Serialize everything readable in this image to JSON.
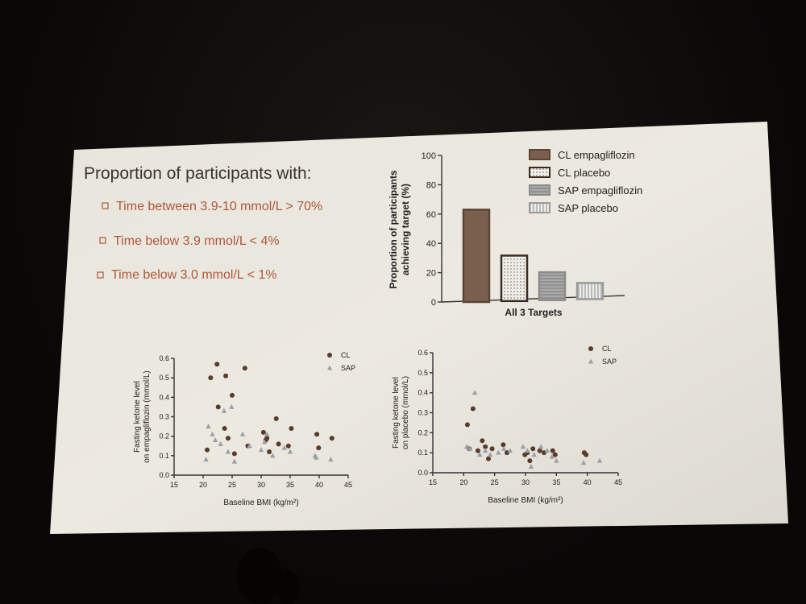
{
  "left_panel": {
    "title": "Proportion of participants with:",
    "bullets": [
      "Time between 3.9-10 mmol/L > 70%",
      "Time below 3.9 mmol/L < 4%",
      "Time below 3.0 mmol/L < 1%"
    ],
    "bullet_color": "#b0563a"
  },
  "chart_data": [
    {
      "type": "bar",
      "ylabel": "Proportion of participants achieving target (%)",
      "xlabel": "All 3 Targets",
      "ylim": [
        0,
        100
      ],
      "yticks": [
        0,
        20,
        40,
        60,
        80,
        100
      ],
      "series": [
        {
          "name": "CL empagliflozin",
          "values": [
            63
          ],
          "pattern": "solid",
          "color": "#7a6050"
        },
        {
          "name": "CL placebo",
          "values": [
            31
          ],
          "pattern": "dotted",
          "color": "#3a2a22"
        },
        {
          "name": "SAP empagliflozin",
          "values": [
            19
          ],
          "pattern": "hatched",
          "color": "#8a8a8a"
        },
        {
          "name": "SAP placebo",
          "values": [
            11
          ],
          "pattern": "vertical-lines",
          "color": "#9a9a9a"
        }
      ],
      "categories": [
        "All 3 Targets"
      ],
      "legend": "top-right"
    },
    {
      "type": "scatter",
      "xlabel": "Baseline BMI (kg/m²)",
      "ylabel": "Fasting ketone level on empagliflozin (mmol/L)",
      "xlim": [
        15,
        45
      ],
      "ylim": [
        0,
        0.6
      ],
      "xticks": [
        15,
        20,
        25,
        30,
        35,
        40,
        45
      ],
      "yticks": [
        "0.0",
        "0.1",
        "0.2",
        "0.3",
        "0.4",
        "0.5",
        "0.6"
      ],
      "legend": "top-right",
      "series": [
        {
          "name": "CL",
          "marker": "circle",
          "color": "#5a3a2a",
          "x": [
            20.7,
            21.3,
            22.4,
            22.6,
            23.7,
            23.9,
            24.3,
            25.0,
            25.4,
            27.2,
            27.7,
            30.4,
            30.8,
            31.0,
            31.4,
            32.6,
            33.0,
            34.7,
            35.2,
            39.6,
            39.9,
            42.2
          ],
          "y": [
            0.13,
            0.5,
            0.57,
            0.35,
            0.24,
            0.51,
            0.19,
            0.41,
            0.11,
            0.55,
            0.15,
            0.22,
            0.18,
            0.19,
            0.12,
            0.29,
            0.16,
            0.15,
            0.24,
            0.21,
            0.14,
            0.19
          ]
        },
        {
          "name": "SAP",
          "marker": "triangle",
          "color": "#9aa0a8",
          "x": [
            20.5,
            20.9,
            21.6,
            22.1,
            23.0,
            23.6,
            24.3,
            24.9,
            25.4,
            26.8,
            28.0,
            30.0,
            30.6,
            31.0,
            32.0,
            34.0,
            35.0,
            39.3,
            39.5,
            42.0
          ],
          "y": [
            0.08,
            0.25,
            0.21,
            0.18,
            0.16,
            0.33,
            0.12,
            0.35,
            0.07,
            0.21,
            0.15,
            0.13,
            0.17,
            0.21,
            0.1,
            0.14,
            0.12,
            0.1,
            0.09,
            0.08
          ]
        }
      ]
    },
    {
      "type": "scatter",
      "xlabel": "Baseline BMI (kg/m²)",
      "ylabel": "Fasting ketone level on placebo (mmol/L)",
      "xlim": [
        15,
        45
      ],
      "ylim": [
        0,
        0.6
      ],
      "xticks": [
        15,
        20,
        25,
        30,
        35,
        40,
        45
      ],
      "yticks": [
        "0.0",
        "0.1",
        "0.2",
        "0.3",
        "0.4",
        "0.5",
        "0.6"
      ],
      "legend": "top-right",
      "series": [
        {
          "name": "CL",
          "marker": "circle",
          "color": "#5a3a2a",
          "x": [
            20.6,
            20.9,
            21.5,
            22.3,
            23.0,
            23.5,
            24.0,
            24.6,
            26.4,
            27.0,
            29.9,
            30.3,
            30.7,
            31.2,
            32.3,
            33.0,
            34.4,
            34.8,
            39.5,
            39.8
          ],
          "y": [
            0.24,
            0.12,
            0.32,
            0.11,
            0.16,
            0.13,
            0.07,
            0.12,
            0.14,
            0.1,
            0.09,
            0.1,
            0.06,
            0.12,
            0.11,
            0.1,
            0.11,
            0.09,
            0.1,
            0.09
          ]
        },
        {
          "name": "SAP",
          "marker": "triangle",
          "color": "#9aa0a8",
          "x": [
            20.5,
            21.0,
            21.8,
            22.6,
            23.5,
            24.3,
            25.6,
            26.5,
            27.5,
            29.6,
            30.3,
            30.9,
            31.4,
            32.5,
            33.5,
            34.3,
            35.0,
            39.4,
            42.0
          ],
          "y": [
            0.13,
            0.12,
            0.4,
            0.09,
            0.11,
            0.09,
            0.1,
            0.12,
            0.11,
            0.13,
            0.11,
            0.03,
            0.09,
            0.13,
            0.11,
            0.08,
            0.06,
            0.05,
            0.06
          ]
        }
      ]
    }
  ]
}
